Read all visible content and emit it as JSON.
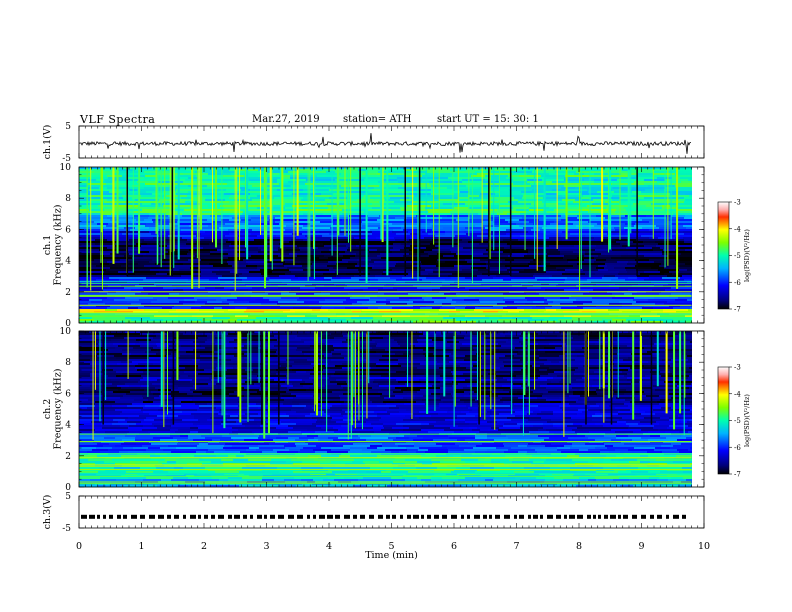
{
  "header": {
    "title": "VLF  Spectra",
    "date": "Mar.27, 2019",
    "station": "station= ATH",
    "start": "start  UT  =   15: 30: 1"
  },
  "chart_data": [
    {
      "type": "line",
      "ylabel": "ch.1(V)",
      "ylim": [
        -5,
        5
      ],
      "yticks": [
        "5",
        "-5"
      ],
      "description_of_values": "noisy waveform centered near -0.5 V with spikes",
      "y_level": -0.5
    },
    {
      "type": "heatmap",
      "ylabel": "ch.1\nFrequency (kHz)",
      "ylabel_lines": [
        "ch.1",
        "Frequency (kHz)"
      ],
      "ylim": [
        0,
        10
      ],
      "yticks": [
        "0",
        "2",
        "4",
        "6",
        "8",
        "10"
      ],
      "colorbar": {
        "label": "log(PSD)(V²/Hz)",
        "range": [
          -7,
          -3
        ],
        "ticks": [
          "-3",
          "-4",
          "-5",
          "-6",
          "-7"
        ]
      },
      "band_log_psd": [
        {
          "f": [
            0,
            0.5
          ],
          "v": -4.8
        },
        {
          "f": [
            0.5,
            0.9
          ],
          "v": -4.3
        },
        {
          "f": [
            0.9,
            2.0
          ],
          "v": -5.9
        },
        {
          "f": [
            2.0,
            3.0
          ],
          "v": -6.1
        },
        {
          "f": [
            3.0,
            5.5
          ],
          "v": -6.8
        },
        {
          "f": [
            5.5,
            6.0
          ],
          "v": -6.2
        },
        {
          "f": [
            6.0,
            7.0
          ],
          "v": -5.7
        },
        {
          "f": [
            7.0,
            10.0
          ],
          "v": -5.0
        }
      ]
    },
    {
      "type": "heatmap",
      "ylabel": "ch.2\nFrequency (kHz)",
      "ylabel_lines": [
        "ch.2",
        "Frequency (kHz)"
      ],
      "ylim": [
        0,
        10
      ],
      "yticks": [
        "0",
        "2",
        "4",
        "6",
        "8",
        "10"
      ],
      "colorbar": {
        "label": "log(PSD)(V²/Hz)",
        "range": [
          -7,
          -3
        ],
        "ticks": [
          "-3",
          "-4",
          "-5",
          "-6",
          "-7"
        ]
      },
      "band_log_psd": [
        {
          "f": [
            0,
            0.6
          ],
          "v": -5.6
        },
        {
          "f": [
            0.6,
            2.2
          ],
          "v": -5.0
        },
        {
          "f": [
            2.2,
            3.5
          ],
          "v": -5.9
        },
        {
          "f": [
            3.5,
            5.5
          ],
          "v": -6.3
        },
        {
          "f": [
            5.5,
            10.0
          ],
          "v": -6.6
        }
      ]
    },
    {
      "type": "line",
      "ylabel": "ch.3(V)",
      "ylim": [
        -5,
        5
      ],
      "yticks": [
        "5",
        "-5"
      ],
      "description_of_values": "square pulse train near -1.5 V",
      "y_level": -1.5
    }
  ],
  "x_axis": {
    "label": "Time  (min)",
    "range": [
      0,
      10
    ],
    "ticks": [
      "0",
      "1",
      "2",
      "3",
      "4",
      "5",
      "6",
      "7",
      "8",
      "9",
      "10"
    ],
    "data_end": 9.8
  }
}
